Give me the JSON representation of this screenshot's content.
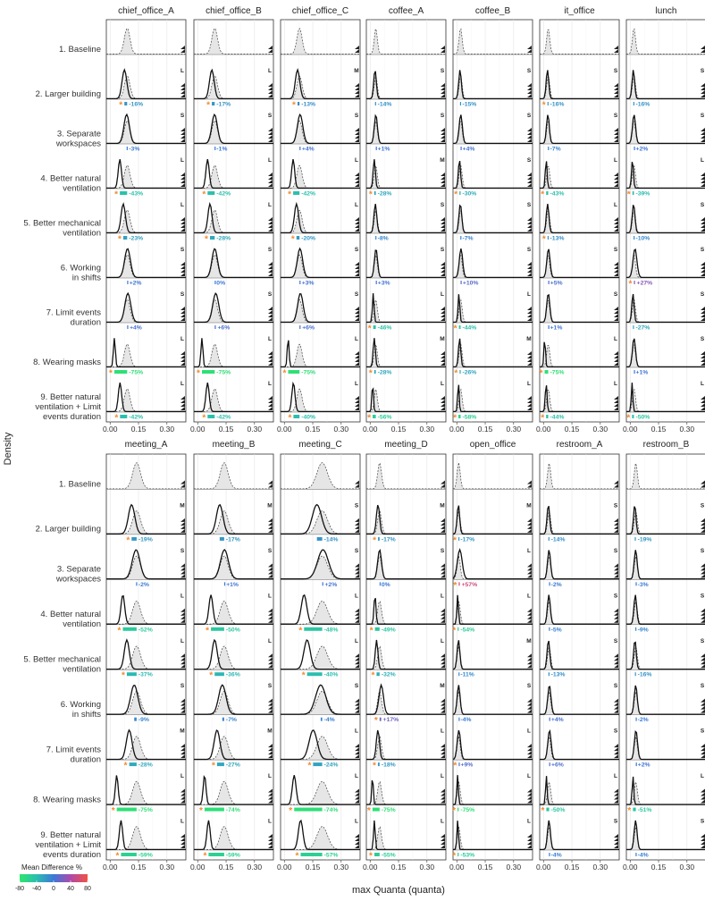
{
  "chart_data": {
    "type": "density-grid",
    "ylabel": "Density",
    "xlabel": "max Quanta (quanta)",
    "x_ticks": [
      "0.00",
      "0.15",
      "0.30"
    ],
    "xlim": [
      -0.02,
      0.4
    ],
    "legend": {
      "title": "Mean Difference %",
      "ticks": [
        "-80",
        "-40",
        "0",
        "40",
        "80"
      ],
      "range": [
        -80,
        80
      ]
    },
    "scenarios": [
      "1. Baseline",
      "2. Larger building",
      "3. Separate workspaces",
      "4. Better natural ventilation",
      "5. Better mechanical ventilation",
      "6. Working in shifts",
      "7. Limit events duration",
      "8. Wearing masks",
      "9. Better natural ventilation + Limit events duration"
    ],
    "scenario_lines": [
      [
        "1. Baseline"
      ],
      [
        "2. Larger building"
      ],
      [
        "3. Separate",
        "workspaces"
      ],
      [
        "4. Better natural",
        "ventilation"
      ],
      [
        "5. Better mechanical",
        "ventilation"
      ],
      [
        "6. Working",
        "in shifts"
      ],
      [
        "7. Limit events",
        "duration"
      ],
      [
        "8. Wearing masks"
      ],
      [
        "9. Better natural",
        "ventilation + Limit",
        "events duration"
      ]
    ],
    "panels": [
      {
        "row": 0,
        "col": 0,
        "location": "chief_office_A",
        "mode": 0.09,
        "sizes": [
          "",
          "L",
          "S",
          "L",
          "L",
          "S",
          "S",
          "L",
          "L"
        ],
        "pct": [
          null,
          -16,
          -3,
          -43,
          -23,
          2,
          4,
          -75,
          -42
        ],
        "sig": [
          false,
          true,
          false,
          true,
          true,
          false,
          false,
          true,
          true
        ]
      },
      {
        "row": 0,
        "col": 1,
        "location": "chief_office_B",
        "mode": 0.09,
        "sizes": [
          "",
          "L",
          "S",
          "L",
          "L",
          "S",
          "S",
          "L",
          "L"
        ],
        "pct": [
          null,
          -17,
          -1,
          -42,
          -28,
          0,
          6,
          -75,
          -42
        ],
        "sig": [
          false,
          true,
          false,
          true,
          true,
          false,
          false,
          true,
          true
        ]
      },
      {
        "row": 0,
        "col": 2,
        "location": "chief_office_C",
        "mode": 0.08,
        "sizes": [
          "",
          "M",
          "S",
          "L",
          "L",
          "S",
          "S",
          "L",
          "L"
        ],
        "pct": [
          null,
          -13,
          4,
          -42,
          -20,
          3,
          6,
          -75,
          -40
        ],
        "sig": [
          false,
          true,
          false,
          true,
          true,
          false,
          false,
          true,
          true
        ]
      },
      {
        "row": 0,
        "col": 3,
        "location": "coffee_A",
        "mode": 0.03,
        "sizes": [
          "",
          "S",
          "S",
          "M",
          "S",
          "S",
          "L",
          "M",
          "L"
        ],
        "pct": [
          null,
          -14,
          1,
          -28,
          -8,
          3,
          -46,
          -28,
          -56
        ],
        "sig": [
          false,
          false,
          false,
          true,
          false,
          false,
          true,
          true,
          true
        ]
      },
      {
        "row": 0,
        "col": 4,
        "location": "coffee_B",
        "mode": 0.02,
        "sizes": [
          "",
          "S",
          "S",
          "S",
          "S",
          "S",
          "L",
          "M",
          "L"
        ],
        "pct": [
          null,
          -15,
          4,
          -30,
          -7,
          10,
          -44,
          -26,
          -58
        ],
        "sig": [
          false,
          false,
          false,
          true,
          false,
          false,
          true,
          true,
          true
        ]
      },
      {
        "row": 0,
        "col": 5,
        "location": "it_office",
        "mode": 0.025,
        "sizes": [
          "",
          "S",
          "S",
          "L",
          "L",
          "S",
          "S",
          "L",
          "L"
        ],
        "pct": [
          null,
          -16,
          -7,
          -43,
          -13,
          5,
          1,
          -75,
          -44
        ],
        "sig": [
          false,
          true,
          false,
          true,
          true,
          false,
          false,
          true,
          true
        ]
      },
      {
        "row": 0,
        "col": 6,
        "location": "lunch",
        "mode": 0.02,
        "sizes": [
          "",
          "S",
          "S",
          "L",
          "S",
          "S",
          "S",
          "S",
          "L"
        ],
        "pct": [
          null,
          -16,
          2,
          -39,
          -10,
          27,
          -27,
          1,
          -50
        ],
        "sig": [
          false,
          false,
          false,
          true,
          false,
          true,
          false,
          false,
          true
        ]
      },
      {
        "row": 1,
        "col": 0,
        "location": "meeting_A",
        "mode": 0.14,
        "sizes": [
          "",
          "M",
          "S",
          "L",
          "L",
          "S",
          "M",
          "L",
          "L"
        ],
        "pct": [
          null,
          -19,
          -2,
          -52,
          -37,
          -9,
          -28,
          -75,
          -59
        ],
        "sig": [
          false,
          true,
          false,
          true,
          true,
          false,
          true,
          true,
          true
        ]
      },
      {
        "row": 1,
        "col": 1,
        "location": "meeting_B",
        "mode": 0.14,
        "sizes": [
          "",
          "M",
          "S",
          "L",
          "L",
          "S",
          "M",
          "L",
          "L"
        ],
        "pct": [
          null,
          -17,
          1,
          -50,
          -36,
          -7,
          -27,
          -74,
          -59
        ],
        "sig": [
          false,
          false,
          false,
          true,
          true,
          false,
          true,
          true,
          true
        ]
      },
      {
        "row": 1,
        "col": 2,
        "location": "meeting_C",
        "mode": 0.2,
        "sizes": [
          "",
          "S",
          "S",
          "L",
          "L",
          "S",
          "L",
          "L",
          "L"
        ],
        "pct": [
          null,
          -14,
          2,
          -48,
          -40,
          -4,
          -24,
          -74,
          -57
        ],
        "sig": [
          false,
          false,
          false,
          true,
          true,
          false,
          true,
          true,
          true
        ]
      },
      {
        "row": 1,
        "col": 3,
        "location": "meeting_D",
        "mode": 0.05,
        "sizes": [
          "",
          "M",
          "S",
          "L",
          "L",
          "M",
          "L",
          "L",
          "L"
        ],
        "pct": [
          null,
          -17,
          0,
          -49,
          -32,
          17,
          -18,
          -75,
          -55
        ],
        "sig": [
          false,
          true,
          false,
          true,
          true,
          true,
          true,
          true,
          true
        ]
      },
      {
        "row": 1,
        "col": 4,
        "location": "open_office",
        "mode": 0.01,
        "sizes": [
          "",
          "M",
          "L",
          "L",
          "M",
          "S",
          "L",
          "L",
          "L"
        ],
        "pct": [
          null,
          -17,
          57,
          -54,
          -11,
          -4,
          9,
          -75,
          -53
        ],
        "sig": [
          false,
          true,
          true,
          true,
          false,
          false,
          true,
          true,
          true
        ]
      },
      {
        "row": 1,
        "col": 5,
        "location": "restroom_A",
        "mode": 0.03,
        "sizes": [
          "",
          "S",
          "S",
          "S",
          "S",
          "S",
          "S",
          "L",
          "S"
        ],
        "pct": [
          null,
          -14,
          -2,
          -5,
          -13,
          4,
          6,
          -50,
          -4
        ],
        "sig": [
          false,
          false,
          false,
          false,
          false,
          false,
          false,
          true,
          false
        ]
      },
      {
        "row": 1,
        "col": 6,
        "location": "restroom_B",
        "mode": 0.03,
        "sizes": [
          "",
          "S",
          "S",
          "S",
          "S",
          "S",
          "S",
          "L",
          "S"
        ],
        "pct": [
          null,
          -19,
          -3,
          -9,
          -16,
          -2,
          2,
          -51,
          -4
        ],
        "sig": [
          false,
          false,
          false,
          false,
          false,
          false,
          false,
          true,
          false
        ]
      }
    ]
  }
}
